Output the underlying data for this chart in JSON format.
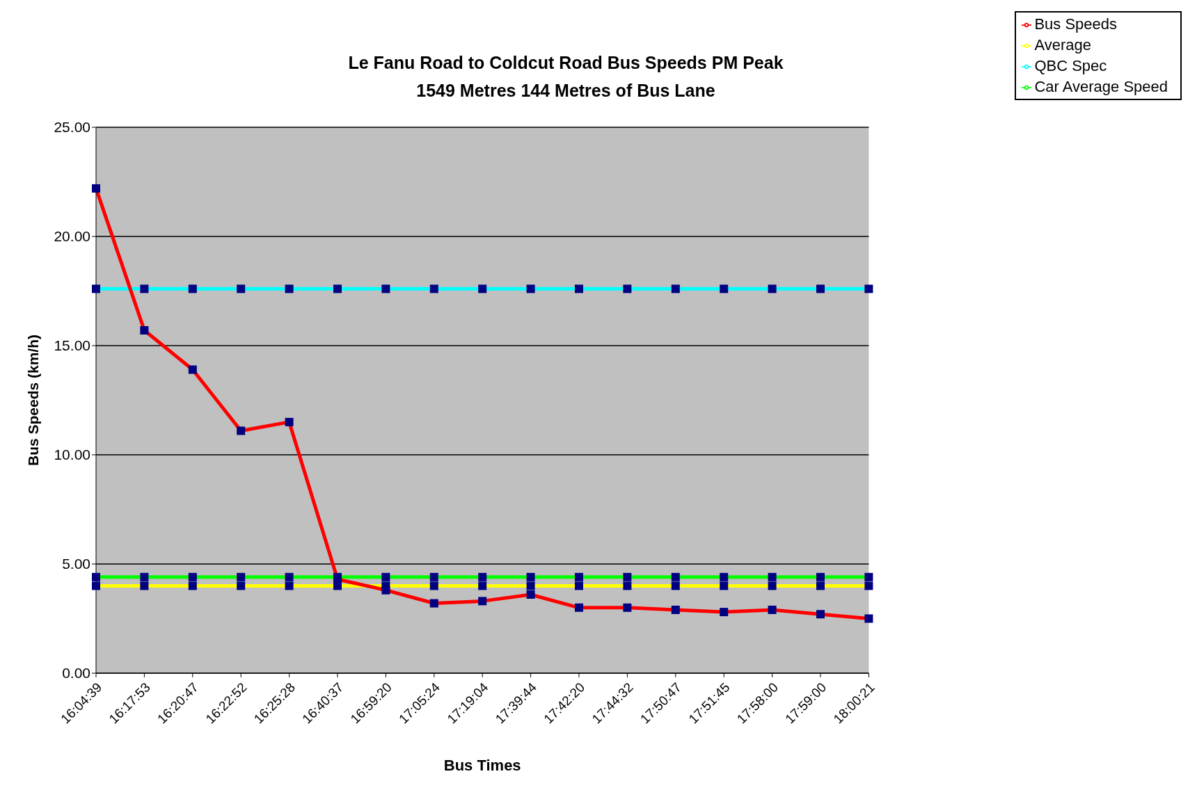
{
  "chart_data": {
    "type": "line",
    "title": "Le Fanu Road to Coldcut Road Bus Speeds PM Peak",
    "subtitle": "1549 Metres 144 Metres of Bus Lane",
    "xlabel": "Bus Times",
    "ylabel": "Bus Speeds (km/h)",
    "categories": [
      "16:04:39",
      "16:17:53",
      "16:20:47",
      "16:22:52",
      "16:25:28",
      "16:40:37",
      "16:59:20",
      "17:05:24",
      "17:19:04",
      "17:39:44",
      "17:42:20",
      "17:44:32",
      "17:50:47",
      "17:51:45",
      "17:58:00",
      "17:59:00",
      "18:00:21"
    ],
    "series": [
      {
        "name": "Bus Speeds",
        "color": "#ff0000",
        "values": [
          22.2,
          15.7,
          13.9,
          11.1,
          11.5,
          4.3,
          3.8,
          3.2,
          3.3,
          3.6,
          3.0,
          3.0,
          2.9,
          2.8,
          2.9,
          2.7,
          2.5
        ]
      },
      {
        "name": "Average",
        "color": "#ffff00",
        "values": [
          4.0,
          4.0,
          4.0,
          4.0,
          4.0,
          4.0,
          4.0,
          4.0,
          4.0,
          4.0,
          4.0,
          4.0,
          4.0,
          4.0,
          4.0,
          4.0,
          4.0
        ]
      },
      {
        "name": "QBC Spec",
        "color": "#00ffff",
        "values": [
          17.6,
          17.6,
          17.6,
          17.6,
          17.6,
          17.6,
          17.6,
          17.6,
          17.6,
          17.6,
          17.6,
          17.6,
          17.6,
          17.6,
          17.6,
          17.6,
          17.6
        ]
      },
      {
        "name": "Car Average Speed",
        "color": "#00ff00",
        "values": [
          4.4,
          4.4,
          4.4,
          4.4,
          4.4,
          4.4,
          4.4,
          4.4,
          4.4,
          4.4,
          4.4,
          4.4,
          4.4,
          4.4,
          4.4,
          4.4,
          4.4
        ]
      }
    ],
    "ylim": [
      0,
      25
    ],
    "yticks": [
      {
        "value": 0,
        "label": "0.00"
      },
      {
        "value": 5,
        "label": "5.00"
      },
      {
        "value": 10,
        "label": "10.00"
      },
      {
        "value": 15,
        "label": "15.00"
      },
      {
        "value": 20,
        "label": "20.00"
      },
      {
        "value": 25,
        "label": "25.00"
      }
    ],
    "grid": "y",
    "legend": "top right",
    "marker": "square",
    "line_style": "solid"
  }
}
